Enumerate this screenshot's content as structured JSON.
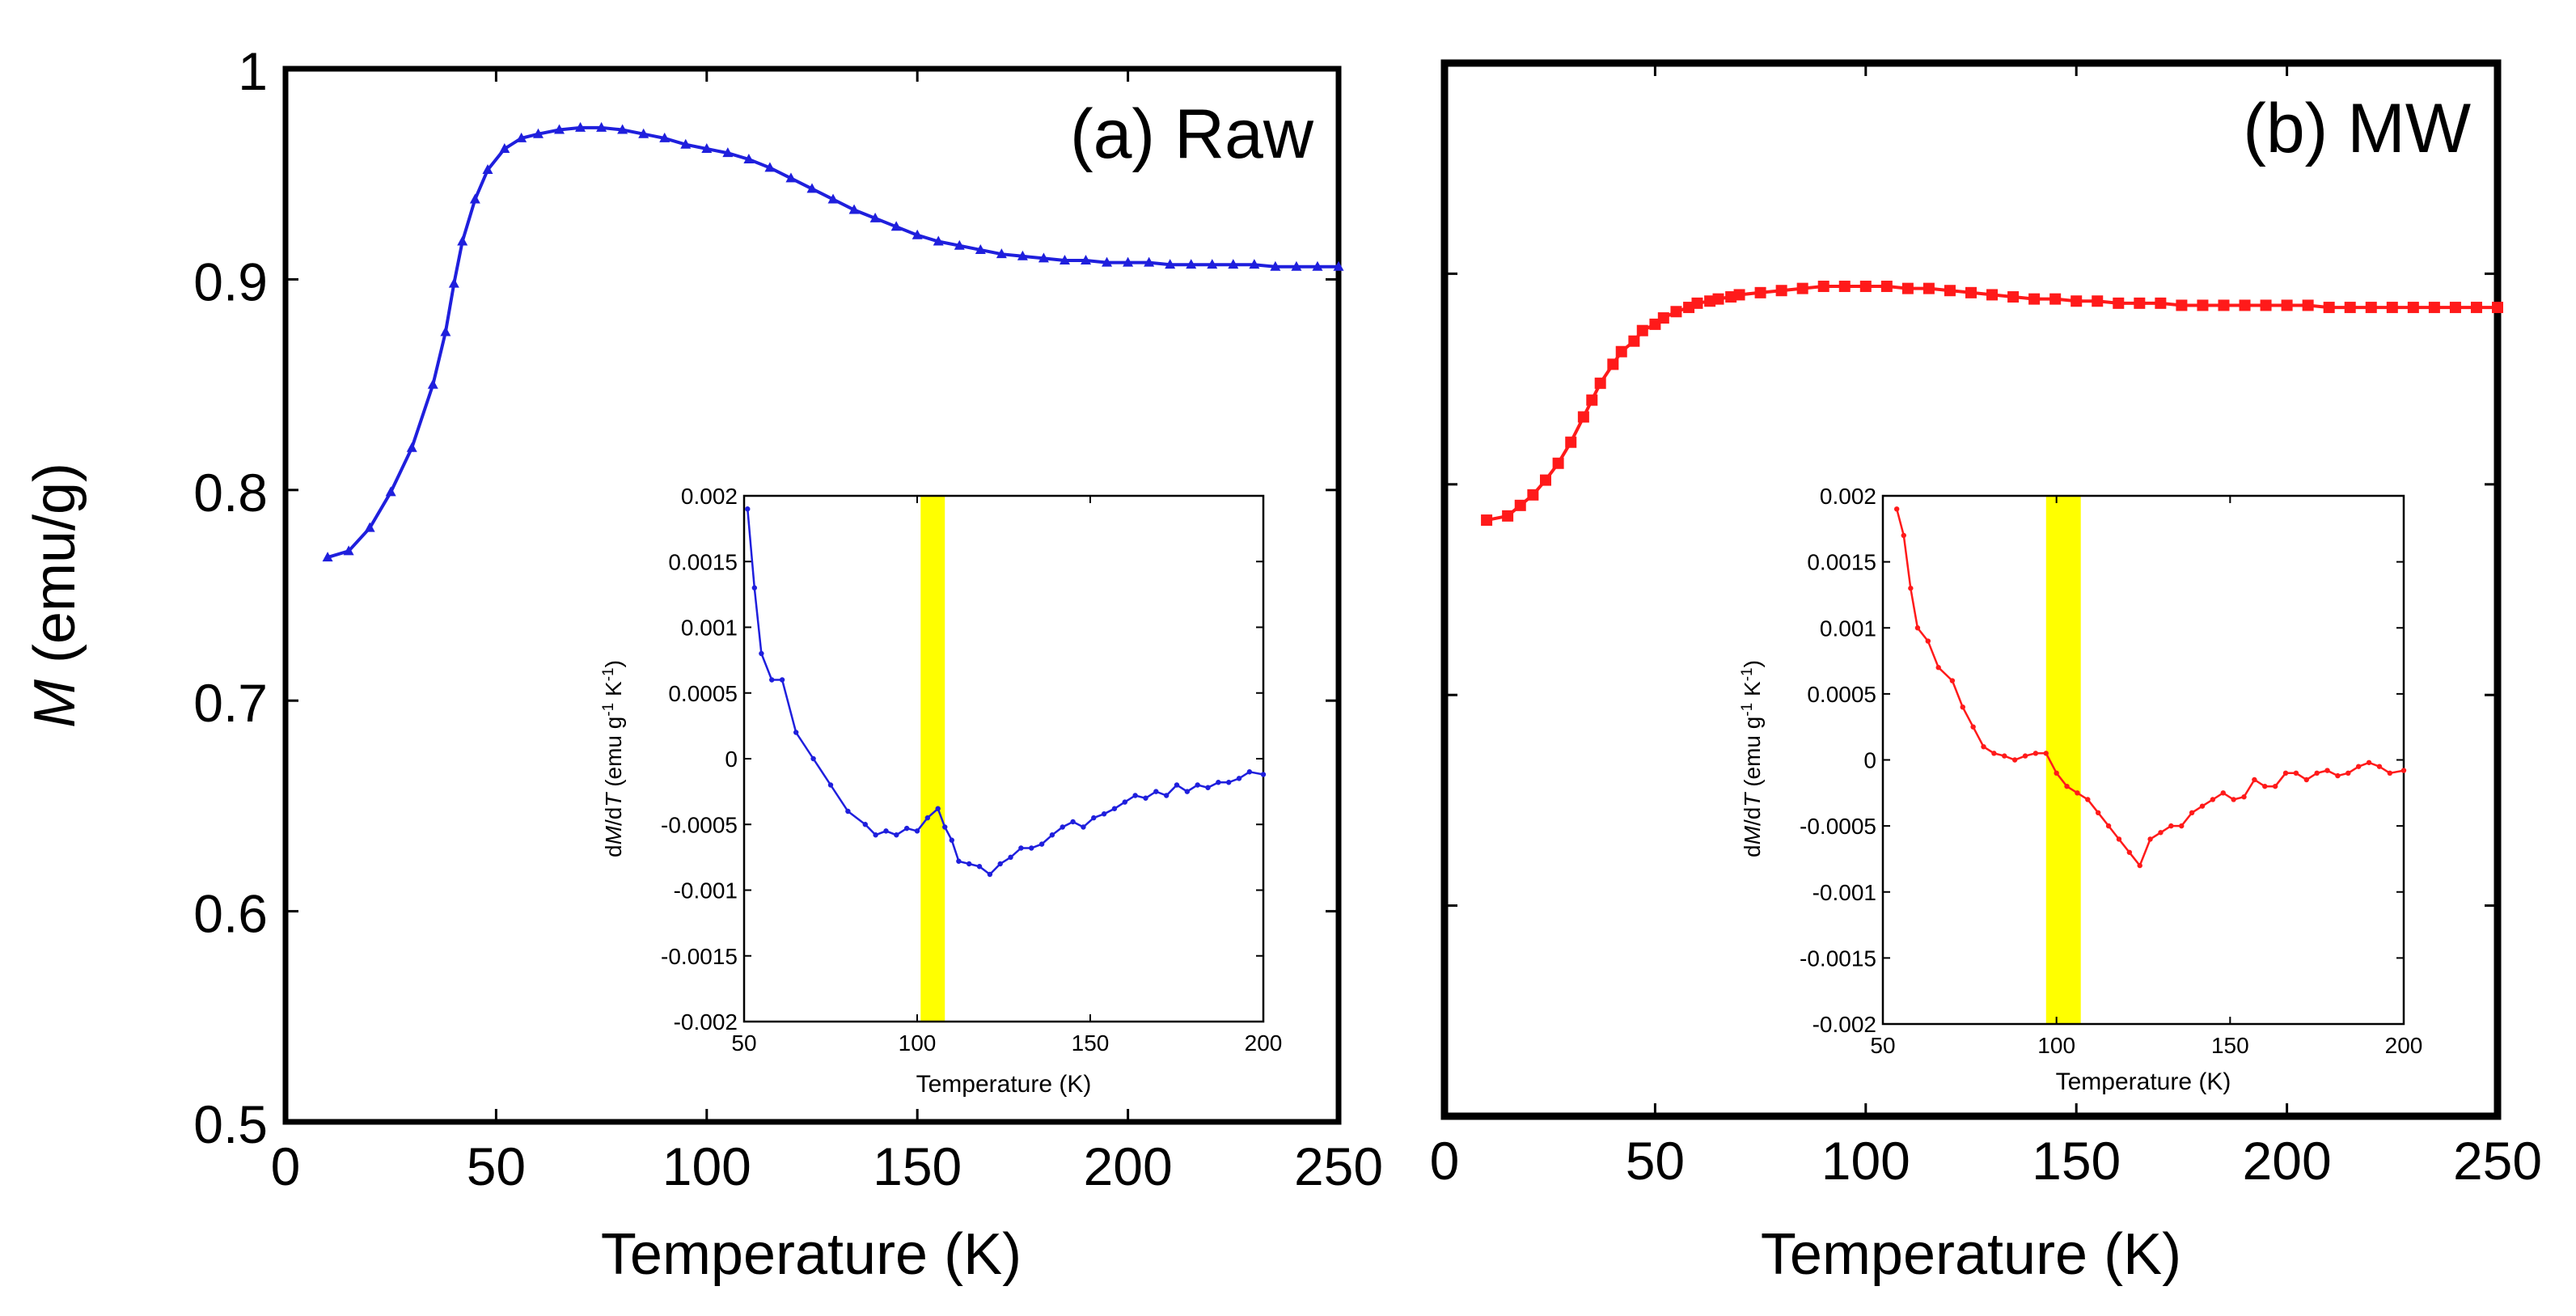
{
  "colors": {
    "raw": "#1f1fdd",
    "mw": "#ff1a1a",
    "highlight": "#ffff00",
    "axis": "#000000"
  },
  "chart_data": [
    {
      "id": "a",
      "type": "line",
      "title": "(a) Raw",
      "xlabel": "Temperature (K)",
      "ylabel_italic": "M",
      "ylabel_rest": " (emu/g)",
      "xlim": [
        0,
        250
      ],
      "ylim": [
        0.5,
        1.0
      ],
      "xticks": [
        "0",
        "50",
        "100",
        "150",
        "200",
        "250"
      ],
      "yticks": [
        "0.5",
        "0.6",
        "0.7",
        "0.8",
        "0.9",
        "1"
      ],
      "series": [
        {
          "name": "Raw",
          "marker": "triangle",
          "x": [
            10,
            15,
            20,
            25,
            30,
            35,
            38,
            40,
            42,
            45,
            48,
            52,
            56,
            60,
            65,
            70,
            75,
            80,
            85,
            90,
            95,
            100,
            105,
            110,
            115,
            120,
            125,
            130,
            135,
            140,
            145,
            150,
            155,
            160,
            165,
            170,
            175,
            180,
            185,
            190,
            195,
            200,
            205,
            210,
            215,
            220,
            225,
            230,
            235,
            240,
            245,
            250
          ],
          "y": [
            0.768,
            0.771,
            0.782,
            0.799,
            0.82,
            0.85,
            0.875,
            0.898,
            0.918,
            0.938,
            0.952,
            0.962,
            0.967,
            0.969,
            0.971,
            0.972,
            0.972,
            0.971,
            0.969,
            0.967,
            0.964,
            0.962,
            0.96,
            0.957,
            0.953,
            0.948,
            0.943,
            0.938,
            0.933,
            0.929,
            0.925,
            0.921,
            0.918,
            0.916,
            0.914,
            0.912,
            0.911,
            0.91,
            0.909,
            0.909,
            0.908,
            0.908,
            0.908,
            0.907,
            0.907,
            0.907,
            0.907,
            0.907,
            0.906,
            0.906,
            0.906,
            0.906
          ]
        }
      ],
      "inset": {
        "xlabel": "Temperature (K)",
        "ylabel_parts": [
          "d",
          "M",
          "/d",
          "T",
          " (emu g",
          "-1",
          " K",
          "-1",
          ")"
        ],
        "xlim": [
          50,
          200
        ],
        "ylim": [
          -0.002,
          0.002
        ],
        "xticks": [
          "50",
          "100",
          "150",
          "200"
        ],
        "yticks": [
          "0.002",
          "0.0015",
          "0.001",
          "0.0005",
          "0",
          "-0.0005",
          "-0.001",
          "-0.0015",
          "-0.002"
        ],
        "highlight": [
          101,
          108
        ],
        "x": [
          51,
          53,
          55,
          58,
          61,
          65,
          70,
          75,
          80,
          85,
          88,
          91,
          94,
          97,
          100,
          103,
          106,
          108,
          110,
          112,
          115,
          118,
          121,
          124,
          127,
          130,
          133,
          136,
          139,
          142,
          145,
          148,
          151,
          154,
          157,
          160,
          163,
          166,
          169,
          172,
          175,
          178,
          181,
          184,
          187,
          190,
          193,
          196,
          200
        ],
        "y": [
          0.0019,
          0.0013,
          0.0008,
          0.0006,
          0.0006,
          0.0002,
          0.0,
          -0.0002,
          -0.0004,
          -0.0005,
          -0.00058,
          -0.00055,
          -0.00058,
          -0.00053,
          -0.00055,
          -0.00045,
          -0.00038,
          -0.00052,
          -0.00062,
          -0.00078,
          -0.0008,
          -0.00082,
          -0.00088,
          -0.0008,
          -0.00075,
          -0.00068,
          -0.00068,
          -0.00065,
          -0.00058,
          -0.00052,
          -0.00048,
          -0.00052,
          -0.00045,
          -0.00042,
          -0.00038,
          -0.00033,
          -0.00028,
          -0.0003,
          -0.00025,
          -0.00028,
          -0.0002,
          -0.00025,
          -0.0002,
          -0.00022,
          -0.00018,
          -0.00018,
          -0.00015,
          -0.0001,
          -0.00012
        ]
      }
    },
    {
      "id": "b",
      "type": "line",
      "title": "(b) MW",
      "xlabel": "Temperature (K)",
      "xlim": [
        0,
        250
      ],
      "ylim": [
        0.5,
        1.0
      ],
      "xticks": [
        "0",
        "50",
        "100",
        "150",
        "200",
        "250"
      ],
      "yticks": [],
      "series": [
        {
          "name": "MW",
          "marker": "square",
          "x": [
            10,
            15,
            18,
            21,
            24,
            27,
            30,
            33,
            35,
            37,
            40,
            42,
            45,
            47,
            50,
            52,
            55,
            58,
            60,
            63,
            65,
            68,
            70,
            75,
            80,
            85,
            90,
            95,
            100,
            105,
            110,
            115,
            120,
            125,
            130,
            135,
            140,
            145,
            150,
            155,
            160,
            165,
            170,
            175,
            180,
            185,
            190,
            195,
            200,
            205,
            210,
            215,
            220,
            225,
            230,
            235,
            240,
            245,
            250
          ],
          "y": [
            0.783,
            0.785,
            0.79,
            0.795,
            0.802,
            0.81,
            0.82,
            0.832,
            0.84,
            0.848,
            0.857,
            0.863,
            0.868,
            0.873,
            0.876,
            0.879,
            0.882,
            0.884,
            0.886,
            0.887,
            0.888,
            0.889,
            0.89,
            0.891,
            0.892,
            0.893,
            0.894,
            0.894,
            0.894,
            0.894,
            0.893,
            0.893,
            0.892,
            0.891,
            0.89,
            0.889,
            0.888,
            0.888,
            0.887,
            0.887,
            0.886,
            0.886,
            0.886,
            0.885,
            0.885,
            0.885,
            0.885,
            0.885,
            0.885,
            0.885,
            0.884,
            0.884,
            0.884,
            0.884,
            0.884,
            0.884,
            0.884,
            0.884,
            0.884
          ]
        }
      ],
      "inset": {
        "xlabel": "Temperature (K)",
        "ylabel_parts": [
          "d",
          "M",
          "/d",
          "T",
          " (emu g",
          "-1",
          " K",
          "-1",
          ")"
        ],
        "xlim": [
          50,
          200
        ],
        "ylim": [
          -0.002,
          0.002
        ],
        "xticks": [
          "50",
          "100",
          "150",
          "200"
        ],
        "yticks": [
          "0.002",
          "0.0015",
          "0.001",
          "0.0005",
          "0",
          "-0.0005",
          "-0.001",
          "-0.0015",
          "-0.002"
        ],
        "highlight": [
          97,
          107
        ],
        "x": [
          54,
          56,
          58,
          60,
          63,
          66,
          70,
          73,
          76,
          79,
          82,
          85,
          88,
          91,
          94,
          97,
          100,
          103,
          106,
          109,
          112,
          115,
          118,
          121,
          124,
          127,
          130,
          133,
          136,
          139,
          142,
          145,
          148,
          151,
          154,
          157,
          160,
          163,
          166,
          169,
          172,
          175,
          178,
          181,
          184,
          187,
          190,
          193,
          196,
          200
        ],
        "y": [
          0.0019,
          0.0017,
          0.0013,
          0.001,
          0.0009,
          0.0007,
          0.0006,
          0.0004,
          0.00025,
          0.0001,
          5e-05,
          3e-05,
          0.0,
          3e-05,
          5e-05,
          5e-05,
          -0.0001,
          -0.0002,
          -0.00025,
          -0.0003,
          -0.0004,
          -0.0005,
          -0.0006,
          -0.0007,
          -0.0008,
          -0.0006,
          -0.00055,
          -0.0005,
          -0.0005,
          -0.0004,
          -0.00035,
          -0.0003,
          -0.00025,
          -0.0003,
          -0.00028,
          -0.00015,
          -0.0002,
          -0.0002,
          -0.0001,
          -0.0001,
          -0.00015,
          -0.0001,
          -8e-05,
          -0.00012,
          -0.0001,
          -5e-05,
          -2e-05,
          -5e-05,
          -0.0001,
          -8e-05
        ]
      }
    }
  ]
}
